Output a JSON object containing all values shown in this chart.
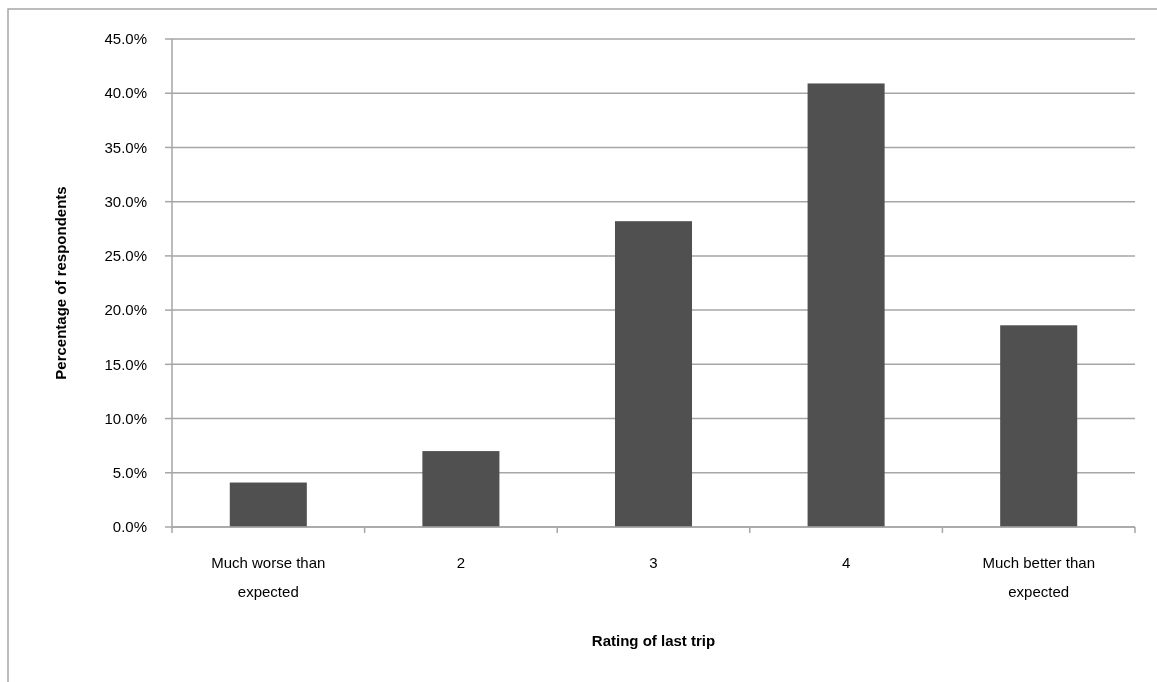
{
  "chart_data": {
    "type": "bar",
    "xlabel": "Rating of last trip",
    "ylabel": "Percentage of respondents",
    "categories": [
      "Much worse than expected",
      "2",
      "3",
      "4",
      "Much better than expected"
    ],
    "values": [
      4.1,
      7.0,
      28.2,
      40.9,
      18.6
    ],
    "color": "#505050",
    "ylim": [
      0,
      45
    ],
    "yticks": [
      {
        "value": 0,
        "label": "0.0%"
      },
      {
        "value": 5,
        "label": "5.0%"
      },
      {
        "value": 10,
        "label": "10.0%"
      },
      {
        "value": 15,
        "label": "15.0%"
      },
      {
        "value": 20,
        "label": "20.0%"
      },
      {
        "value": 25,
        "label": "25.0%"
      },
      {
        "value": 30,
        "label": "30.0%"
      },
      {
        "value": 35,
        "label": "35.0%"
      },
      {
        "value": 40,
        "label": "40.0%"
      },
      {
        "value": 45,
        "label": "45.0%"
      }
    ],
    "grid": "y"
  }
}
